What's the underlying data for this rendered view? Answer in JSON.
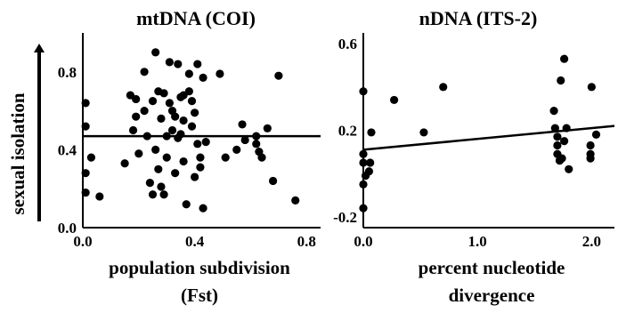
{
  "figure": {
    "ylabel": "sexual isolation"
  },
  "chart_data": [
    {
      "type": "scatter",
      "title": "mtDNA (COI)",
      "xlabel": [
        "population subdivision",
        "(Fst)"
      ],
      "ylabel": "sexual isolation",
      "xlim": [
        0,
        0.85
      ],
      "ylim": [
        0,
        1.0
      ],
      "xticks": [
        0.0,
        0.4,
        0.8
      ],
      "xtick_labels": [
        "0.0",
        "0.4",
        "0.8"
      ],
      "yticks": [
        0.0,
        0.4,
        0.8
      ],
      "ytick_labels": [
        "0.0",
        "0.4",
        "0.8"
      ],
      "grid": false,
      "points": [
        [
          0.01,
          0.64
        ],
        [
          0.01,
          0.52
        ],
        [
          0.01,
          0.28
        ],
        [
          0.01,
          0.18
        ],
        [
          0.03,
          0.36
        ],
        [
          0.06,
          0.16
        ],
        [
          0.15,
          0.33
        ],
        [
          0.17,
          0.68
        ],
        [
          0.18,
          0.5
        ],
        [
          0.19,
          0.66
        ],
        [
          0.19,
          0.57
        ],
        [
          0.2,
          0.38
        ],
        [
          0.22,
          0.8
        ],
        [
          0.22,
          0.6
        ],
        [
          0.23,
          0.47
        ],
        [
          0.24,
          0.23
        ],
        [
          0.25,
          0.17
        ],
        [
          0.25,
          0.65
        ],
        [
          0.26,
          0.9
        ],
        [
          0.26,
          0.4
        ],
        [
          0.27,
          0.3
        ],
        [
          0.27,
          0.7
        ],
        [
          0.28,
          0.56
        ],
        [
          0.28,
          0.21
        ],
        [
          0.29,
          0.69
        ],
        [
          0.29,
          0.17
        ],
        [
          0.3,
          0.47
        ],
        [
          0.3,
          0.36
        ],
        [
          0.31,
          0.85
        ],
        [
          0.31,
          0.64
        ],
        [
          0.32,
          0.6
        ],
        [
          0.32,
          0.5
        ],
        [
          0.33,
          0.28
        ],
        [
          0.33,
          0.57
        ],
        [
          0.34,
          0.46
        ],
        [
          0.34,
          0.84
        ],
        [
          0.35,
          0.67
        ],
        [
          0.35,
          0.48
        ],
        [
          0.36,
          0.68
        ],
        [
          0.36,
          0.34
        ],
        [
          0.36,
          0.55
        ],
        [
          0.37,
          0.12
        ],
        [
          0.38,
          0.79
        ],
        [
          0.38,
          0.7
        ],
        [
          0.39,
          0.65
        ],
        [
          0.39,
          0.52
        ],
        [
          0.4,
          0.59
        ],
        [
          0.4,
          0.26
        ],
        [
          0.41,
          0.84
        ],
        [
          0.41,
          0.43
        ],
        [
          0.42,
          0.36
        ],
        [
          0.42,
          0.31
        ],
        [
          0.43,
          0.1
        ],
        [
          0.43,
          0.77
        ],
        [
          0.44,
          0.44
        ],
        [
          0.49,
          0.79
        ],
        [
          0.51,
          0.36
        ],
        [
          0.55,
          0.4
        ],
        [
          0.57,
          0.53
        ],
        [
          0.58,
          0.45
        ],
        [
          0.62,
          0.47
        ],
        [
          0.62,
          0.43
        ],
        [
          0.63,
          0.39
        ],
        [
          0.64,
          0.36
        ],
        [
          0.66,
          0.51
        ],
        [
          0.68,
          0.24
        ],
        [
          0.7,
          0.78
        ],
        [
          0.76,
          0.14
        ]
      ],
      "fit_line": [
        [
          0.0,
          0.47
        ],
        [
          0.85,
          0.47
        ]
      ]
    },
    {
      "type": "scatter",
      "title": "nDNA (ITS-2)",
      "xlabel": [
        "percent nucleotide",
        "divergence"
      ],
      "ylabel": "",
      "xlim": [
        0,
        2.2
      ],
      "ylim": [
        -0.25,
        0.65
      ],
      "xticks": [
        0.0,
        1.0,
        2.0
      ],
      "xtick_labels": [
        "0.0",
        "1.0",
        "2.0"
      ],
      "yticks": [
        -0.2,
        0.2,
        0.6
      ],
      "ytick_labels": [
        "-0.2",
        "0.2",
        "0.6"
      ],
      "grid": false,
      "points": [
        [
          0.0,
          0.38
        ],
        [
          0.0,
          0.09
        ],
        [
          0.0,
          0.05
        ],
        [
          0.0,
          -0.05
        ],
        [
          0.0,
          -0.16
        ],
        [
          0.02,
          -0.01
        ],
        [
          0.05,
          0.01
        ],
        [
          0.06,
          0.05
        ],
        [
          0.07,
          0.19
        ],
        [
          0.27,
          0.34
        ],
        [
          0.53,
          0.19
        ],
        [
          0.7,
          0.4
        ],
        [
          1.67,
          0.29
        ],
        [
          1.68,
          0.21
        ],
        [
          1.7,
          0.17
        ],
        [
          1.7,
          0.13
        ],
        [
          1.7,
          0.09
        ],
        [
          1.72,
          0.06
        ],
        [
          1.73,
          0.43
        ],
        [
          1.74,
          0.07
        ],
        [
          1.76,
          0.15
        ],
        [
          1.76,
          0.53
        ],
        [
          1.78,
          0.21
        ],
        [
          1.8,
          0.02
        ],
        [
          1.99,
          0.13
        ],
        [
          1.99,
          0.09
        ],
        [
          1.99,
          0.07
        ],
        [
          2.0,
          0.4
        ],
        [
          2.04,
          0.18
        ]
      ],
      "fit_line": [
        [
          0.0,
          0.11
        ],
        [
          2.2,
          0.22
        ]
      ]
    }
  ]
}
